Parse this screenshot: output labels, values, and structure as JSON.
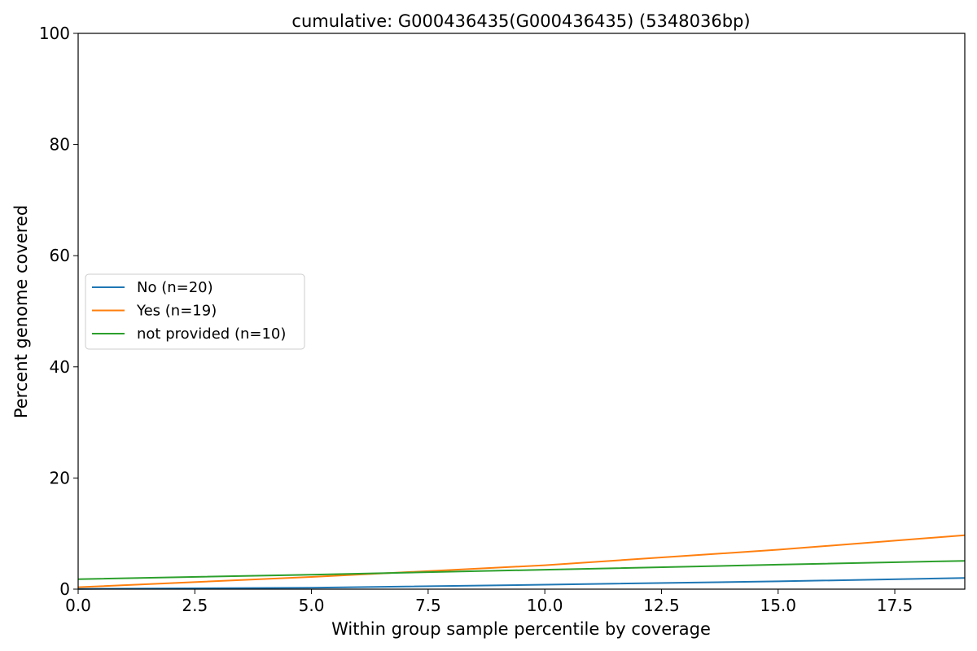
{
  "chart_data": {
    "type": "line",
    "title": "cumulative: G000436435(G000436435) (5348036bp)",
    "xlabel": "Within group sample percentile by coverage",
    "ylabel": "Percent genome covered",
    "xlim": [
      0,
      19
    ],
    "ylim": [
      0,
      100
    ],
    "xticks": [
      "0.0",
      "2.5",
      "5.0",
      "7.5",
      "10.0",
      "12.5",
      "15.0",
      "17.5"
    ],
    "yticks": [
      "0",
      "20",
      "40",
      "60",
      "80",
      "100"
    ],
    "grid": false,
    "legend_position": "center-left",
    "series": [
      {
        "name": "No (n=20)",
        "color": "#1f77b4",
        "x": [
          0,
          5,
          10,
          15,
          19
        ],
        "y": [
          0.05,
          0.25,
          0.8,
          1.4,
          2.0
        ]
      },
      {
        "name": "Yes (n=19)",
        "color": "#ff7f0e",
        "x": [
          0,
          5,
          10,
          15,
          19
        ],
        "y": [
          0.35,
          2.2,
          4.3,
          7.1,
          9.7
        ]
      },
      {
        "name": "not provided (n=10)",
        "color": "#2ca02c",
        "x": [
          0,
          5,
          10,
          15,
          19
        ],
        "y": [
          1.8,
          2.6,
          3.5,
          4.4,
          5.1
        ]
      }
    ]
  }
}
